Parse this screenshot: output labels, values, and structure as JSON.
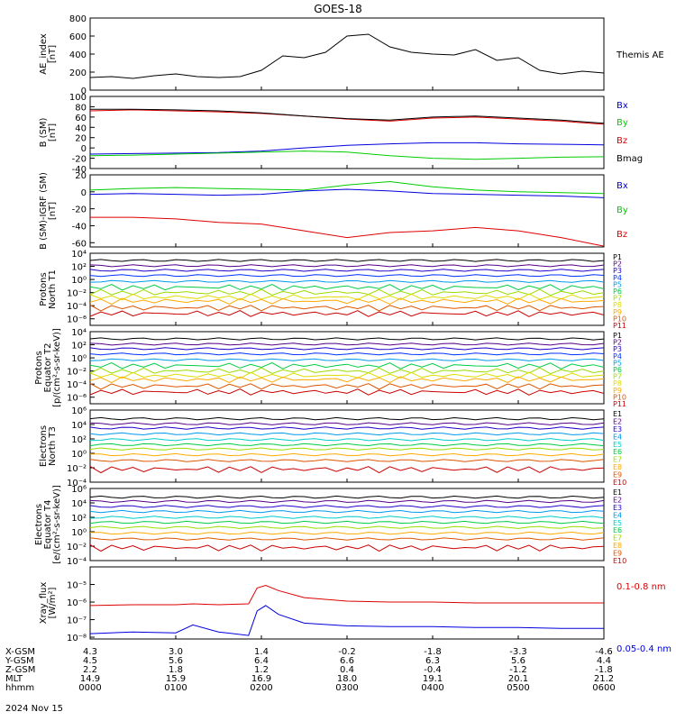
{
  "title": "GOES-18",
  "date_label": "2024 Nov 15",
  "colors": {
    "black": "#000000",
    "red": "#dd0000",
    "blue": "#0000dd",
    "green": "#00cc00",
    "ch": [
      "#000000",
      "#550088",
      "#2200cc",
      "#0033ff",
      "#0099ee",
      "#00cccc",
      "#00cc44",
      "#99dd00",
      "#dddd00",
      "#ffaa00",
      "#dd5500",
      "#cc0000"
    ]
  },
  "orbit": {
    "row_labels": [
      "X-GSM",
      "Y-GSM",
      "Z-GSM",
      "MLT",
      "hhmm"
    ],
    "columns": [
      [
        "4.3",
        "4.5",
        "2.2",
        "14.9",
        "0000"
      ],
      [
        "3.0",
        "5.6",
        "1.8",
        "15.9",
        "0100"
      ],
      [
        "1.4",
        "6.4",
        "1.2",
        "16.9",
        "0200"
      ],
      [
        "-0.2",
        "6.6",
        "0.4",
        "18.0",
        "0300"
      ],
      [
        "-1.8",
        "6.3",
        "-0.4",
        "19.1",
        "0400"
      ],
      [
        "-3.3",
        "5.6",
        "-1.2",
        "20.1",
        "0500"
      ],
      [
        "-4.6",
        "4.4",
        "-1.8",
        "21.2",
        "0600"
      ]
    ]
  },
  "chart_data": [
    {
      "type": "line",
      "panel": "ae",
      "ylabel": [
        "AE_index",
        "[nT]"
      ],
      "ylim": [
        0,
        800
      ],
      "yticks": [
        "800",
        "600",
        "400",
        "200",
        "0"
      ],
      "x_hours": [
        0,
        0.25,
        0.5,
        0.75,
        1,
        1.25,
        1.5,
        1.75,
        2,
        2.25,
        2.5,
        2.75,
        3,
        3.25,
        3.5,
        3.75,
        4,
        4.25,
        4.5,
        4.75,
        5,
        5.25,
        5.5,
        5.75,
        6
      ],
      "series": [
        {
          "name": "Themis AE",
          "color": "black",
          "values": [
            140,
            150,
            130,
            160,
            180,
            150,
            140,
            150,
            220,
            380,
            360,
            420,
            600,
            620,
            480,
            420,
            400,
            390,
            450,
            330,
            360,
            220,
            180,
            210,
            190
          ]
        }
      ]
    },
    {
      "type": "line",
      "panel": "bsm",
      "ylabel": [
        "B (SM)",
        "[nT]"
      ],
      "ylim": [
        -40,
        100
      ],
      "yticks": [
        "100",
        "80",
        "60",
        "40",
        "20",
        "0",
        "-20",
        "-40"
      ],
      "x_hours": [
        0,
        0.5,
        1,
        1.5,
        2,
        2.5,
        3,
        3.5,
        4,
        4.5,
        5,
        5.5,
        6
      ],
      "series": [
        {
          "name": "Bx",
          "color": "blue",
          "values": [
            -12,
            -11,
            -10,
            -9,
            -6,
            0,
            5,
            8,
            10,
            10,
            8,
            7,
            6
          ]
        },
        {
          "name": "By",
          "color": "green",
          "values": [
            -15,
            -14,
            -12,
            -10,
            -8,
            -6,
            -8,
            -15,
            -20,
            -22,
            -20,
            -18,
            -17
          ]
        },
        {
          "name": "Bz",
          "color": "red",
          "values": [
            72,
            74,
            72,
            70,
            67,
            62,
            56,
            52,
            58,
            60,
            56,
            52,
            46
          ]
        },
        {
          "name": "Bmag",
          "color": "black",
          "values": [
            75,
            75,
            74,
            72,
            68,
            62,
            57,
            54,
            60,
            62,
            58,
            54,
            48
          ]
        }
      ]
    },
    {
      "type": "line",
      "panel": "bdiff",
      "ylabel": [
        "B (SM)-IGRF (SM)",
        "[nT]"
      ],
      "ylim": [
        -65,
        20
      ],
      "yticks": [
        "20",
        "0",
        "-20",
        "-40",
        "-60"
      ],
      "x_hours": [
        0,
        0.5,
        1,
        1.5,
        2,
        2.5,
        3,
        3.5,
        4,
        4.5,
        5,
        5.5,
        6
      ],
      "series": [
        {
          "name": "Bx",
          "color": "blue",
          "values": [
            -3,
            -2,
            -3,
            -4,
            -3,
            1,
            3,
            1,
            -2,
            -3,
            -4,
            -5,
            -7
          ]
        },
        {
          "name": "By",
          "color": "green",
          "values": [
            2,
            4,
            5,
            4,
            3,
            2,
            8,
            12,
            6,
            2,
            0,
            -1,
            -2
          ]
        },
        {
          "name": "Bz",
          "color": "red",
          "values": [
            -30,
            -30,
            -32,
            -36,
            -38,
            -46,
            -54,
            -48,
            -46,
            -42,
            -46,
            -54,
            -64
          ]
        }
      ]
    },
    {
      "type": "line",
      "panel": "pn",
      "ylabel": [
        "Protons",
        "North T1"
      ],
      "yscale": "log",
      "ylim_exp": [
        -7,
        4
      ],
      "yticks": [
        "10⁴",
        "10²",
        "10⁰",
        "10⁻²",
        "10⁻⁴",
        "10⁻⁶"
      ],
      "legend": [
        "P1",
        "P2",
        "P3",
        "P4",
        "P5",
        "P6",
        "P7",
        "P8",
        "P9",
        "P10",
        "P11"
      ],
      "series_log_levels": [
        2.9,
        2.1,
        1.4,
        0.6,
        -0.3,
        -1.2,
        -2.0,
        -2.7,
        -3.3,
        -4.3,
        -5.2
      ]
    },
    {
      "type": "line",
      "panel": "pe",
      "ylabel": [
        "Protons",
        "Equator T2",
        "[p/(cm²-s-sr-keV)]"
      ],
      "yscale": "log",
      "ylim_exp": [
        -7,
        4
      ],
      "yticks": [
        "10⁴",
        "10²",
        "10⁰",
        "10⁻²",
        "10⁻⁴",
        "10⁻⁶"
      ],
      "legend": [
        "P1",
        "P2",
        "P3",
        "P4",
        "P5",
        "P6",
        "P7",
        "P8",
        "P9",
        "P10",
        "P11"
      ],
      "series_log_levels": [
        2.9,
        2.1,
        1.4,
        0.6,
        -0.3,
        -1.2,
        -2.0,
        -2.7,
        -3.3,
        -4.3,
        -5.2
      ]
    },
    {
      "type": "line",
      "panel": "en",
      "ylabel": [
        "Electrons",
        "North T3"
      ],
      "yscale": "log",
      "ylim_exp": [
        -4,
        6
      ],
      "yticks": [
        "10⁶",
        "10⁴",
        "10²",
        "10⁰",
        "10⁻²",
        "10⁻⁴"
      ],
      "legend": [
        "E1",
        "E2",
        "E3",
        "E4",
        "E5",
        "E6",
        "E7",
        "E8",
        "E9",
        "E10"
      ],
      "series_log_levels": [
        4.8,
        4.1,
        3.5,
        2.7,
        1.9,
        1.2,
        0.6,
        -0.2,
        -1.0,
        -2.2
      ]
    },
    {
      "type": "line",
      "panel": "ee",
      "ylabel": [
        "Electrons",
        "Equator T4",
        "[e/(cm²-s-sr-keV)]"
      ],
      "yscale": "log",
      "ylim_exp": [
        -4,
        6
      ],
      "yticks": [
        "10⁶",
        "10⁴",
        "10²",
        "10⁰",
        "10⁻²",
        "10⁻⁴"
      ],
      "legend": [
        "E1",
        "E2",
        "E3",
        "E4",
        "E5",
        "E6",
        "E7",
        "E8",
        "E9",
        "E10"
      ],
      "series_log_levels": [
        4.8,
        4.2,
        3.5,
        2.8,
        2.0,
        1.3,
        0.6,
        -0.2,
        -1.0,
        -2.2
      ]
    },
    {
      "type": "line",
      "panel": "xray",
      "ylabel": [
        "Xray_flux",
        "[W/m²]"
      ],
      "yscale": "log",
      "ylim_exp": [
        -8.1,
        -4
      ],
      "yticks": [
        "10⁻⁵",
        "10⁻⁶",
        "10⁻⁷",
        "10⁻⁸"
      ],
      "x_hours": [
        0,
        0.5,
        1,
        1.2,
        1.5,
        1.85,
        1.95,
        2.05,
        2.2,
        2.5,
        3,
        3.5,
        4,
        4.5,
        5,
        5.5,
        6
      ],
      "series": [
        {
          "name": "0.1-0.8 nm",
          "color": "red",
          "log_values": [
            -6.2,
            -6.15,
            -6.15,
            -6.1,
            -6.15,
            -6.1,
            -5.2,
            -5.05,
            -5.35,
            -5.75,
            -5.95,
            -6.0,
            -6.0,
            -6.05,
            -6.05,
            -6.05,
            -6.05
          ]
        },
        {
          "name": "0.05-0.4 nm",
          "color": "blue",
          "log_values": [
            -7.8,
            -7.7,
            -7.75,
            -7.3,
            -7.7,
            -7.9,
            -6.5,
            -6.2,
            -6.7,
            -7.2,
            -7.35,
            -7.4,
            -7.4,
            -7.45,
            -7.45,
            -7.5,
            -7.5
          ]
        }
      ]
    }
  ]
}
